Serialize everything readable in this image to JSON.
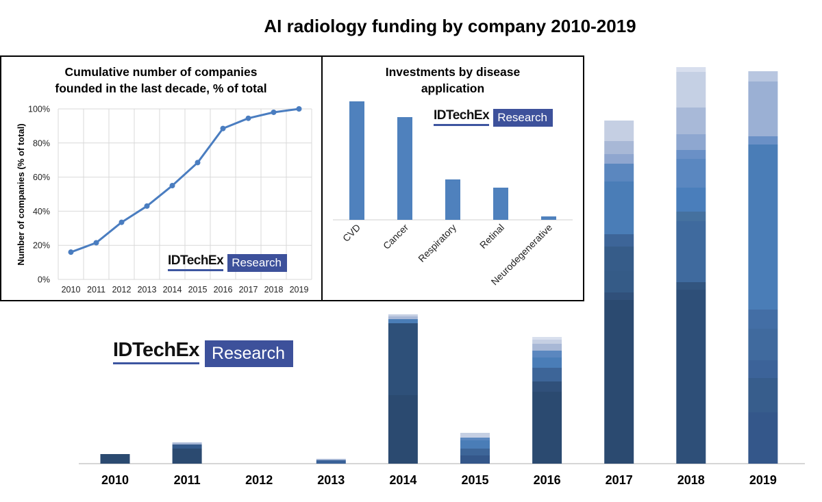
{
  "chart_data": [
    {
      "type": "bar",
      "stacked": true,
      "title": "AI radiology funding by company 2010-2019",
      "xlabel": "",
      "ylabel": "",
      "categories": [
        "2010",
        "2011",
        "2012",
        "2013",
        "2014",
        "2015",
        "2016",
        "2017",
        "2018",
        "2019"
      ],
      "stacks": [
        [
          {
            "v": 14,
            "c": "#2b4a70"
          }
        ],
        [
          {
            "v": 22,
            "c": "#2b4a70"
          },
          {
            "v": 6,
            "c": "#34598a"
          },
          {
            "v": 3,
            "c": "#a8b8d6"
          }
        ],
        [],
        [
          {
            "v": 5,
            "c": "#3a6298"
          },
          {
            "v": 2,
            "c": "#a8b8d6"
          }
        ],
        [
          {
            "v": 100,
            "c": "#2b4a70"
          },
          {
            "v": 105,
            "c": "#2e5079"
          },
          {
            "v": 6,
            "c": "#4a7db7"
          },
          {
            "v": 4,
            "c": "#a8b8d6"
          },
          {
            "v": 3,
            "c": "#c5cfe3"
          }
        ],
        [
          {
            "v": 12,
            "c": "#34578a"
          },
          {
            "v": 10,
            "c": "#3d6598"
          },
          {
            "v": 12,
            "c": "#4a7db7"
          },
          {
            "v": 4,
            "c": "#5b87bf"
          },
          {
            "v": 7,
            "c": "#c5cfe3"
          }
        ],
        [
          {
            "v": 105,
            "c": "#2b4a70"
          },
          {
            "v": 15,
            "c": "#30507a"
          },
          {
            "v": 20,
            "c": "#3d6598"
          },
          {
            "v": 15,
            "c": "#4a7db7"
          },
          {
            "v": 10,
            "c": "#5b87bf"
          },
          {
            "v": 10,
            "c": "#a8b8d6"
          },
          {
            "v": 6,
            "c": "#c5cfe3"
          },
          {
            "v": 4,
            "c": "#d8dfee"
          }
        ],
        [
          {
            "v": 239,
            "c": "#2b4a70"
          },
          {
            "v": 11,
            "c": "#30507a"
          },
          {
            "v": 31,
            "c": "#355b87"
          },
          {
            "v": 36,
            "c": "#365c89"
          },
          {
            "v": 18,
            "c": "#3d6598"
          },
          {
            "v": 77,
            "c": "#4a7db7"
          },
          {
            "v": 26,
            "c": "#5b87bf"
          },
          {
            "v": 14,
            "c": "#8fa6cf"
          },
          {
            "v": 19,
            "c": "#a8b8d6"
          },
          {
            "v": 30,
            "c": "#c5cfe3"
          }
        ],
        [
          {
            "v": 254,
            "c": "#2e4f78"
          },
          {
            "v": 11,
            "c": "#32557f"
          },
          {
            "v": 89,
            "c": "#3f6a9e"
          },
          {
            "v": 14,
            "c": "#45719f"
          },
          {
            "v": 35,
            "c": "#4a7ebb"
          },
          {
            "v": 42,
            "c": "#5a87c0"
          },
          {
            "v": 13,
            "c": "#6a90c6"
          },
          {
            "v": 23,
            "c": "#8ea7d0"
          },
          {
            "v": 39,
            "c": "#a8b9d8"
          },
          {
            "v": 52,
            "c": "#c5d0e4"
          },
          {
            "v": 7,
            "c": "#d8dfee"
          }
        ],
        [
          {
            "v": 75,
            "c": "#34578a"
          },
          {
            "v": 50,
            "c": "#375d8c"
          },
          {
            "v": 26,
            "c": "#3c6399"
          },
          {
            "v": 46,
            "c": "#406a9e"
          },
          {
            "v": 28,
            "c": "#436ea5"
          },
          {
            "v": 241,
            "c": "#4a7db7"
          },
          {
            "v": 12,
            "c": "#6a90c6"
          },
          {
            "v": 80,
            "c": "#9bb0d4"
          },
          {
            "v": 15,
            "c": "#b8c6e0"
          }
        ]
      ]
    },
    {
      "type": "line",
      "title": "Cumulative number of companies founded in the last decade, % of total",
      "title_lines": [
        "Cumulative number of companies",
        "founded in the last decade, % of total"
      ],
      "ylabel": "Number of companies (% of total)",
      "x": [
        "2010",
        "2011",
        "2012",
        "2013",
        "2014",
        "2015",
        "2016",
        "2017",
        "2018",
        "2019"
      ],
      "y": [
        16,
        21.5,
        33.5,
        43,
        55,
        68.5,
        88.5,
        94.5,
        98,
        100
      ],
      "ylim": [
        0,
        100
      ],
      "yticks": [
        "0%",
        "20%",
        "40%",
        "60%",
        "80%",
        "100%"
      ],
      "grid": true,
      "color": "#4a7dc0"
    },
    {
      "type": "bar",
      "title": "Investments by disease application",
      "title_lines": [
        "Investments by disease",
        "application"
      ],
      "categories": [
        "CVD",
        "Cancer",
        "Respiratory",
        "Retinal",
        "Neurodegenerative"
      ],
      "values": [
        173,
        150,
        59,
        47,
        5
      ],
      "color": "#4f81bd"
    }
  ],
  "logo": {
    "brand": "IDTechEx",
    "tag": "Research"
  }
}
